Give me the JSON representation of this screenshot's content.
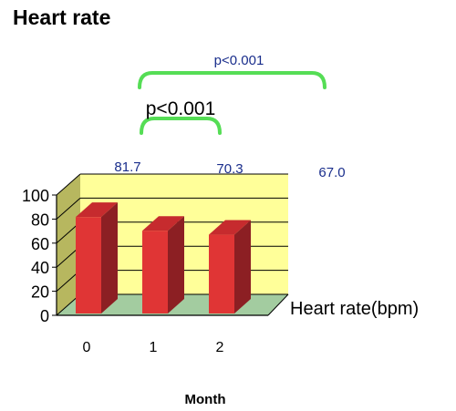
{
  "title": "Heart rate",
  "chart_data": {
    "type": "bar",
    "title": "Heart rate",
    "categories": [
      "0",
      "1",
      "2"
    ],
    "series": [
      {
        "name": "Heart rate(bpm)",
        "values": [
          81.7,
          70.3,
          67.0
        ]
      }
    ],
    "data_labels": [
      "81.7",
      "70.3",
      "67.0"
    ],
    "xlabel": "Month",
    "ylabel": "",
    "ylim": [
      0,
      100
    ],
    "yticks": [
      0,
      20,
      40,
      60,
      80,
      100
    ],
    "grid": true,
    "three_d": true,
    "legend": {
      "label": "Heart rate(bpm)",
      "position": "right"
    },
    "annotations": [
      {
        "text": "p<0.001",
        "from": "0",
        "to": "1"
      },
      {
        "text": "p<0.001",
        "from": "0",
        "to": "2"
      }
    ],
    "colors": {
      "bar_front": "#e03535",
      "bar_side": "#8c1f23",
      "bar_top": "#c62b2e",
      "back_wall": "#ffff99",
      "side_wall": "#b7b75f",
      "floor": "#a3cca0",
      "bracket": "#55dd55",
      "label_blue": "#1a2e8c"
    }
  }
}
